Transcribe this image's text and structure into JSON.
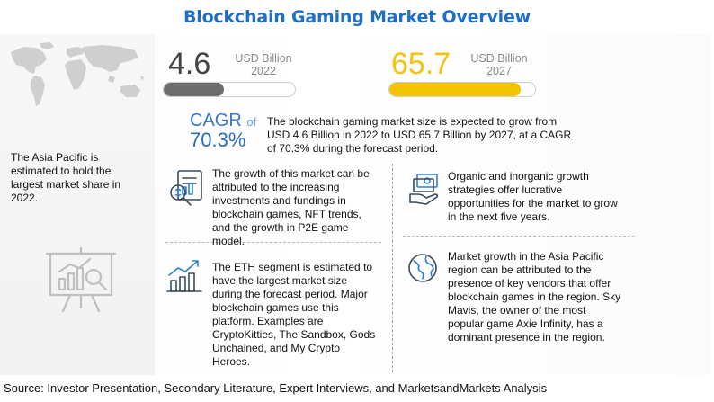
{
  "title": "Blockchain Gaming Market Overview",
  "market": {
    "year_2022": {
      "value": "4.6",
      "unit": "USD Billion",
      "year": "2022",
      "progress_fraction": 0.46
    },
    "year_2027": {
      "value": "65.7",
      "unit": "USD Billion",
      "year": "2027",
      "progress_fraction": 0.9
    }
  },
  "cagr": {
    "label": "CAGR",
    "of": "of",
    "value": "70.3%",
    "description": "The blockchain gaming market size is expected to grow from USD 4.6 Billion in 2022 to USD 65.7 Billion by 2027, at a CAGR of 70.3% during the forecast period."
  },
  "asia_text": "The Asia Pacific is estimated to hold the largest market share in 2022.",
  "insights": [
    {
      "icon": "investment-icon",
      "text": "The growth of this market can be attributed to the increasing investments and fundings in blockchain games, NFT trends, and the growth in P2E game model."
    },
    {
      "icon": "growth-chart-icon",
      "text": "The ETH segment is estimated to have the largest market size during the forecast period. Major blockchain games use this platform. Examples are CryptoKitties, The Sandbox, Gods Unchained, and My Crypto Heroes."
    },
    {
      "icon": "money-hand-icon",
      "text": "Organic and inorganic growth strategies offer lucrative opportunities for the market to grow in the next five years."
    },
    {
      "icon": "globe-icon",
      "text": "Market growth in the Asia Pacific region can be attributed to the presence of key vendors that offer blockchain games in the region. Sky Mavis, the owner of the most popular game Axie Infinity, has a dominant presence in the region."
    }
  ],
  "source": "Source: Investor Presentation, Secondary Literature, Expert Interviews, and MarketsandMarkets Analysis",
  "colors": {
    "title": "#1f6fc5",
    "accent_yellow": "#f5c400",
    "bar_gray": "#6d6d6d",
    "cagr_blue": "#2b6cb6"
  }
}
